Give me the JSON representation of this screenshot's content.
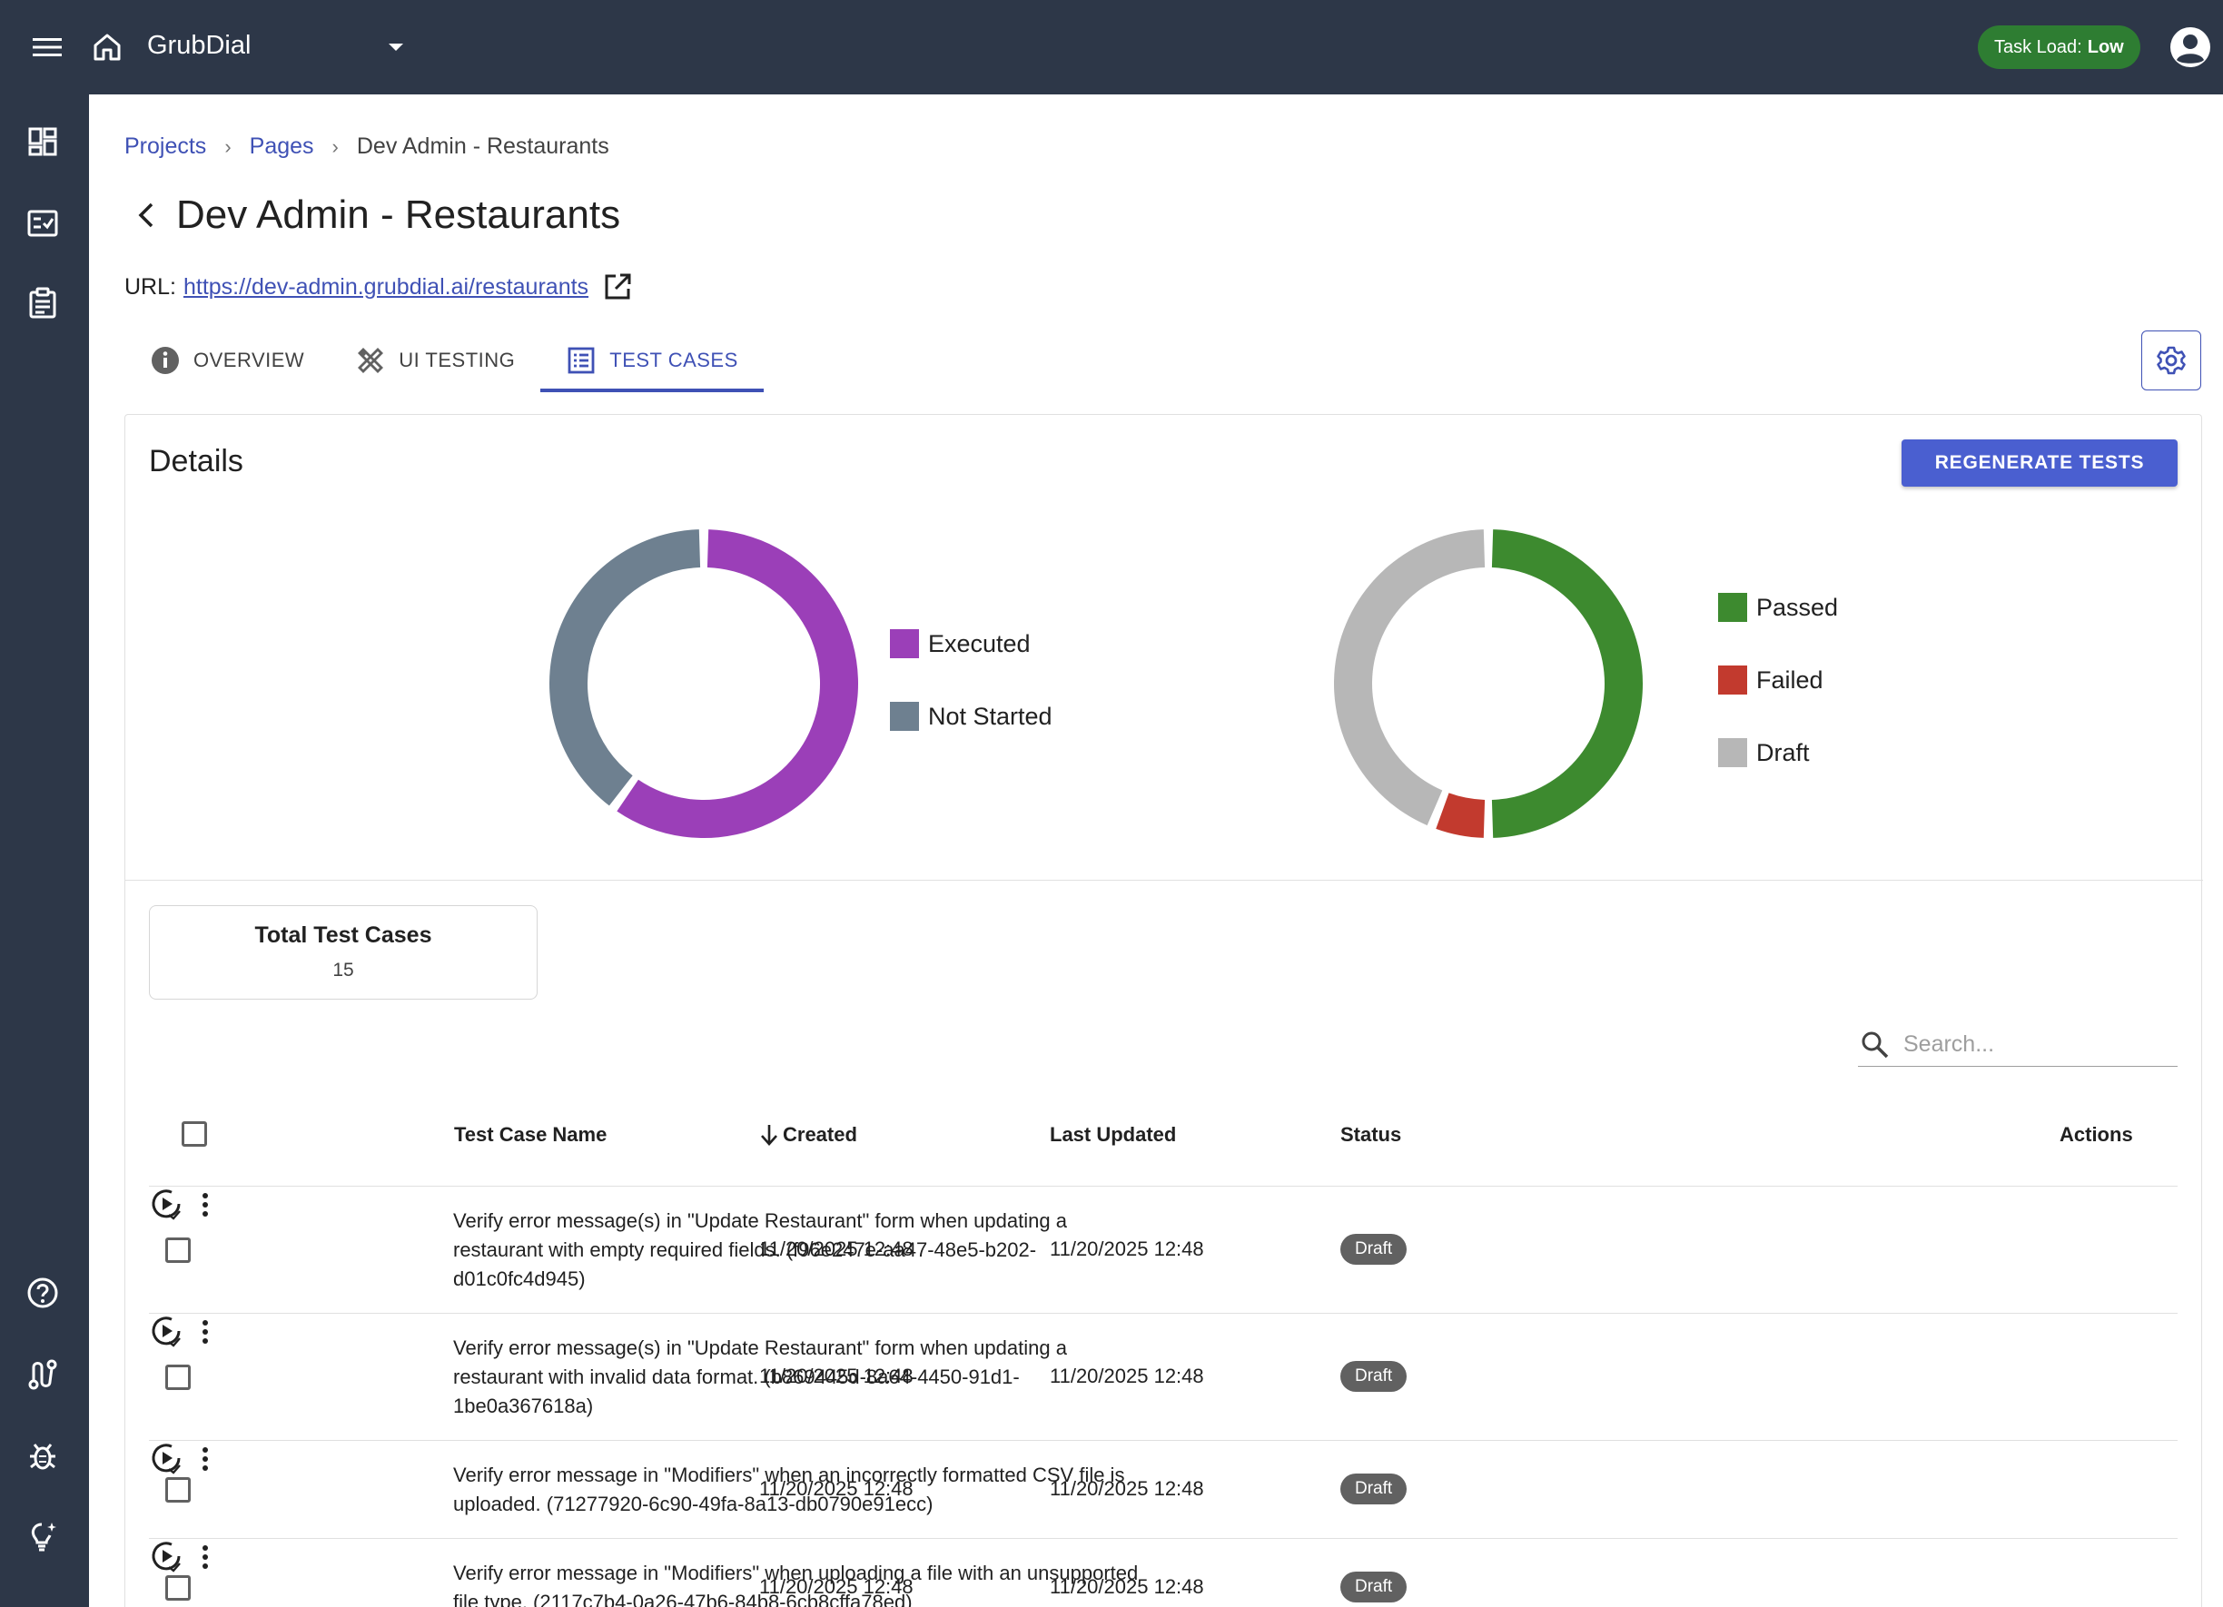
{
  "app": {
    "name": "GrubDial",
    "task_load_label": "Task Load:",
    "task_load_value": "Low"
  },
  "sidebar": {
    "icons": [
      "dashboard-icon",
      "checklist-icon",
      "clipboard-icon",
      "help-icon",
      "flow-icon",
      "bug-icon",
      "lightbulb-icon"
    ]
  },
  "breadcrumb": {
    "items": [
      "Projects",
      "Pages",
      "Dev Admin - Restaurants"
    ]
  },
  "page": {
    "title": "Dev Admin - Restaurants",
    "url_label": "URL:",
    "url": "https://dev-admin.grubdial.ai/restaurants"
  },
  "tabs": [
    {
      "label": "OVERVIEW",
      "icon": "info-icon",
      "active": false
    },
    {
      "label": "UI TESTING",
      "icon": "tools-icon",
      "active": false
    },
    {
      "label": "TEST CASES",
      "icon": "list-icon",
      "active": true
    }
  ],
  "details": {
    "title": "Details",
    "regenerate_label": "REGENERATE TESTS"
  },
  "charts": {
    "execution": {
      "legend": [
        {
          "label": "Executed",
          "color": "#9b3fb8"
        },
        {
          "label": "Not Started",
          "color": "#6e8090"
        }
      ],
      "values": [
        0.6,
        0.4
      ]
    },
    "results": {
      "legend": [
        {
          "label": "Passed",
          "color": "#3d8a2f"
        },
        {
          "label": "Failed",
          "color": "#c23a2e"
        },
        {
          "label": "Draft",
          "color": "#b7b7b7"
        }
      ],
      "values": [
        0.5,
        0.06,
        0.44
      ]
    }
  },
  "stats": {
    "total_label": "Total Test Cases",
    "total_value": "15"
  },
  "search": {
    "placeholder": "Search..."
  },
  "table": {
    "headers": {
      "name": "Test Case Name",
      "created": "Created",
      "updated": "Last Updated",
      "status": "Status",
      "actions": "Actions"
    },
    "rows": [
      {
        "name_lines": [
          "Verify error message(s) in \"Update Restaurant\" form when updating a",
          "restaurant with empty required fields. (f96e247e-aa47-48e5-b202-",
          "d01c0fc4d945)"
        ],
        "created": "11/20/2025 12:48",
        "updated": "11/20/2025 12:48",
        "status": "Draft"
      },
      {
        "name_lines": [
          "Verify error message(s) in \"Update Restaurant\" form when updating a",
          "restaurant with invalid data format. (b869445d-8a64-4450-91d1-",
          "1be0a367618a)"
        ],
        "created": "11/20/2025 12:48",
        "updated": "11/20/2025 12:48",
        "status": "Draft"
      },
      {
        "name_lines": [
          "Verify error message in \"Modifiers\" when an incorrectly formatted CSV file is",
          "uploaded. (71277920-6c90-49fa-8a13-db0790e91ecc)"
        ],
        "created": "11/20/2025 12:48",
        "updated": "11/20/2025 12:48",
        "status": "Draft"
      },
      {
        "name_lines": [
          "Verify error message in \"Modifiers\" when uploading a file with an unsupported",
          "file type. (2117c7b4-0a26-47b6-84b8-6cb8cffa78ed)"
        ],
        "created": "11/20/2025 12:48",
        "updated": "11/20/2025 12:48",
        "status": "Draft"
      }
    ]
  }
}
